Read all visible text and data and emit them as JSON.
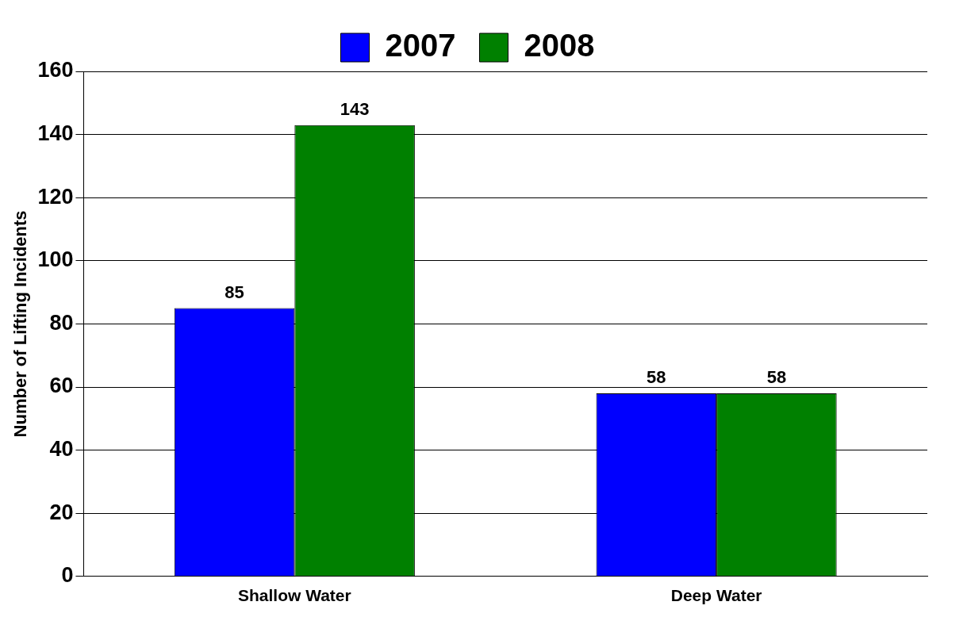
{
  "chart_data": {
    "type": "bar",
    "ylabel": "Number of Lifting Incidents",
    "categories": [
      "Shallow Water",
      "Deep Water"
    ],
    "series": [
      {
        "name": "2007",
        "color": "#0000ff",
        "values": [
          85,
          58
        ]
      },
      {
        "name": "2008",
        "color": "#008000",
        "values": [
          143,
          58
        ]
      }
    ],
    "ylim": [
      0,
      160
    ],
    "yticks": [
      0,
      20,
      40,
      60,
      80,
      100,
      120,
      140,
      160
    ],
    "grid": "y",
    "legend": "top",
    "data_labels": true
  }
}
